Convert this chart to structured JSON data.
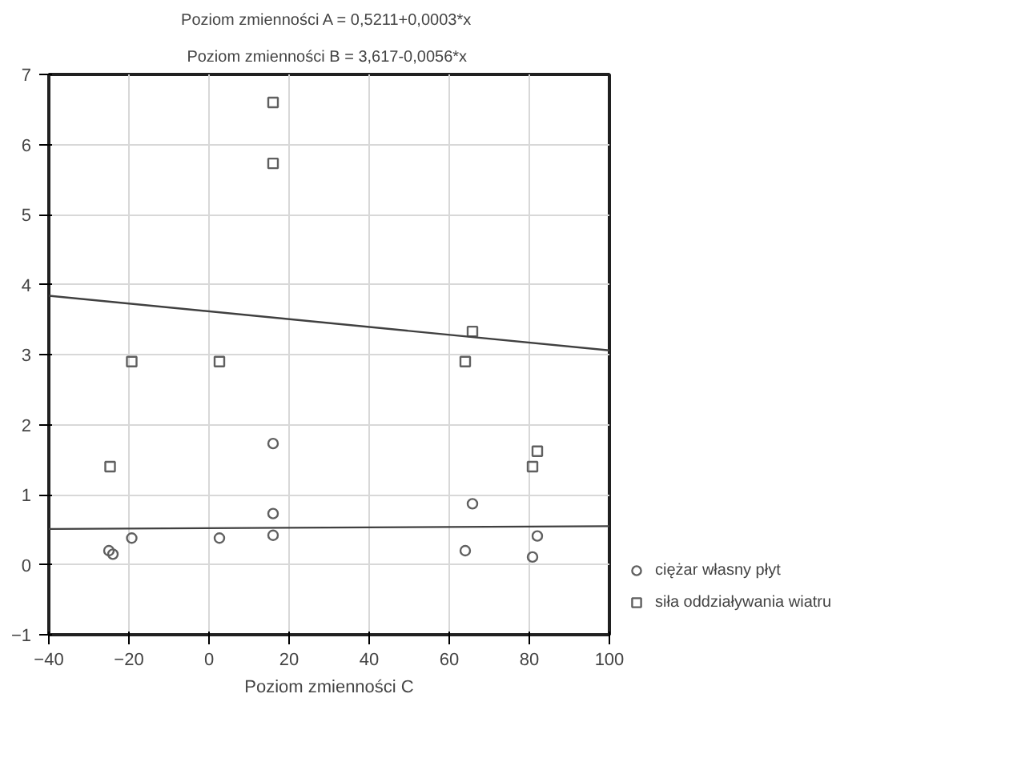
{
  "chart_data": {
    "type": "scatter",
    "title": "Poziom zmienności  A = 0,5211+0,0003*x",
    "subtitle": "Poziom zmienności  B = 3,617-0,0056*x",
    "xlabel": "Poziom zmienności C",
    "series": [
      {
        "name": "ciężar własny płyt",
        "color": "#606060",
        "marker": "circle",
        "x": [
          16,
          16,
          16,
          -25,
          -24,
          -19.3,
          2.6,
          64,
          65.8,
          82,
          80.8
        ],
        "values": [
          1.73,
          0.73,
          0.42,
          0.2,
          0.15,
          0.38,
          0.38,
          0.2,
          0.87,
          0.41,
          0.11
        ]
      },
      {
        "name": "siła oddziaływania wiatru",
        "color": "#606060",
        "marker": "square",
        "x": [
          16,
          16,
          -24.7,
          -19.3,
          2.6,
          64,
          65.8,
          82,
          80.8
        ],
        "values": [
          6.6,
          5.73,
          1.4,
          2.9,
          2.9,
          2.9,
          3.33,
          1.62,
          1.4
        ]
      },
      {
        "type": "line",
        "color": "#404040",
        "x": [
          -40,
          100
        ],
        "values": [
          0.51,
          0.55
        ]
      },
      {
        "type": "line",
        "color": "#404040",
        "x": [
          -40,
          100
        ],
        "values": [
          3.84,
          3.06
        ]
      }
    ],
    "xlim": [
      -40,
      100
    ],
    "ylim": [
      -1,
      7
    ],
    "xticks": [
      -40,
      -20,
      0,
      20,
      40,
      60,
      80,
      100
    ],
    "yticks": [
      -1,
      0,
      1,
      2,
      3,
      4,
      5,
      6,
      7
    ],
    "grid": true,
    "legend": "bottom right"
  }
}
